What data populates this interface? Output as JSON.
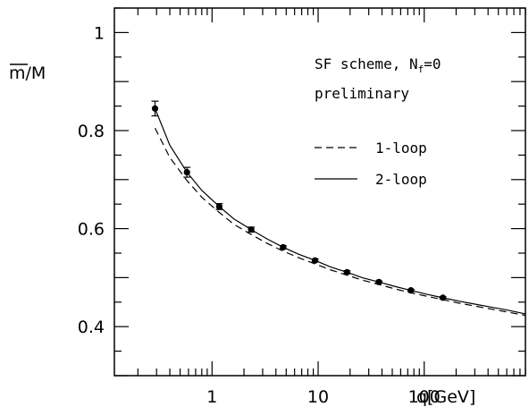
{
  "chart_data": {
    "type": "scatter",
    "title": "",
    "xlabel": "q[GeV]",
    "ylabel_main": "m",
    "ylabel_rest": "/M",
    "x_scale": "log",
    "xlim": [
      0.12,
      900
    ],
    "ylim": [
      0.3,
      1.05
    ],
    "x_major_ticks": [
      1,
      10,
      100
    ],
    "x_tick_labels": [
      "1",
      "10",
      "100"
    ],
    "y_ticks": [
      0.4,
      0.6,
      0.8,
      1.0
    ],
    "y_tick_labels": [
      "0.4",
      "0.6",
      "0.8",
      "1"
    ],
    "grid": false,
    "annotations": {
      "scheme_prefix": "SF scheme, N",
      "scheme_sub": "f",
      "scheme_suffix": "=0",
      "status": "preliminary"
    },
    "legend": {
      "placement": "right",
      "entries": [
        {
          "name": "1-loop",
          "style": "dashed"
        },
        {
          "name": "2-loop",
          "style": "solid"
        }
      ]
    },
    "points": [
      {
        "x": 0.29,
        "y": 0.845,
        "err": 0.015
      },
      {
        "x": 0.58,
        "y": 0.715,
        "err": 0.01
      },
      {
        "x": 1.17,
        "y": 0.645,
        "err": 0.006
      },
      {
        "x": 2.34,
        "y": 0.598,
        "err": 0.005
      },
      {
        "x": 4.68,
        "y": 0.562,
        "err": 0.003
      },
      {
        "x": 9.36,
        "y": 0.535,
        "err": 0.003
      },
      {
        "x": 18.7,
        "y": 0.511,
        "err": 0.003
      },
      {
        "x": 37.4,
        "y": 0.491,
        "err": 0.002
      },
      {
        "x": 74.9,
        "y": 0.474,
        "err": 0.002
      },
      {
        "x": 150,
        "y": 0.459,
        "err": 0.002
      }
    ],
    "series": [
      {
        "name": "2-loop",
        "style": "solid",
        "x": [
          0.29,
          0.4,
          0.58,
          0.8,
          1.17,
          1.6,
          2.34,
          3.3,
          4.68,
          6.5,
          9.36,
          13,
          18.7,
          26,
          37.4,
          53,
          74.9,
          106,
          150,
          212,
          300,
          424,
          600,
          900
        ],
        "y": [
          0.845,
          0.77,
          0.715,
          0.678,
          0.645,
          0.62,
          0.598,
          0.579,
          0.562,
          0.548,
          0.535,
          0.522,
          0.511,
          0.5,
          0.491,
          0.482,
          0.474,
          0.466,
          0.459,
          0.452,
          0.446,
          0.44,
          0.434,
          0.426
        ]
      },
      {
        "name": "1-loop",
        "style": "dashed",
        "x": [
          0.29,
          0.4,
          0.58,
          0.8,
          1.17,
          1.6,
          2.34,
          3.3,
          4.68,
          6.5,
          9.36,
          13,
          18.7,
          26,
          37.4,
          53,
          74.9,
          106,
          150,
          212,
          300,
          424,
          600,
          900
        ],
        "y": [
          0.805,
          0.745,
          0.698,
          0.664,
          0.633,
          0.609,
          0.588,
          0.57,
          0.554,
          0.541,
          0.528,
          0.516,
          0.505,
          0.495,
          0.486,
          0.477,
          0.469,
          0.462,
          0.455,
          0.448,
          0.442,
          0.436,
          0.43,
          0.423
        ]
      }
    ]
  }
}
